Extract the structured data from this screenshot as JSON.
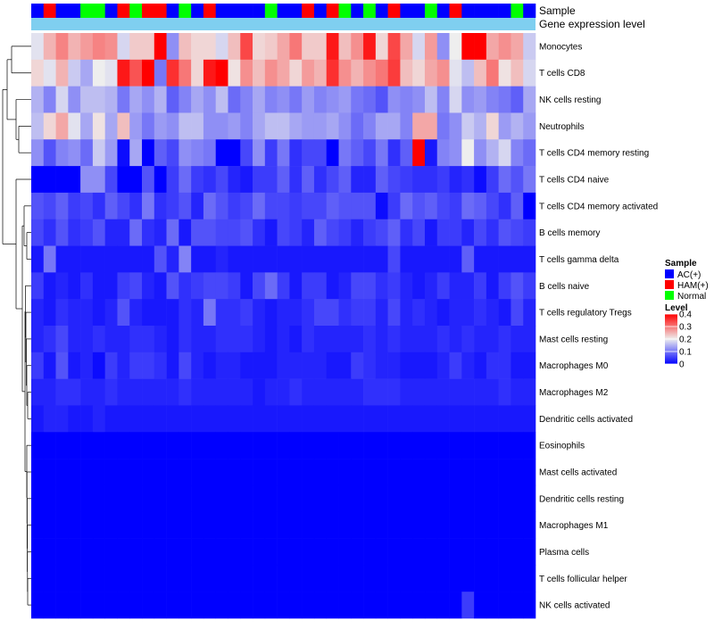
{
  "chart_data": {
    "type": "heatmap",
    "title": "",
    "row_labels": [
      "Monocytes",
      "T cells CD8",
      "NK cells resting",
      "Neutrophils",
      "T cells CD4 memory resting",
      "T cells CD4 naive",
      "T cells CD4 memory activated",
      "B cells memory",
      "T cells gamma delta",
      "B cells naive",
      "T cells regulatory  Tregs",
      "Mast cells resting",
      "Macrophages M0",
      "Macrophages M2",
      "Dendritic cells activated",
      "Eosinophils",
      "Mast cells activated",
      "Dendritic cells resting",
      "Macrophages M1",
      "Plasma cells",
      "T cells follicular helper",
      "NK cells activated"
    ],
    "annotation_tracks": [
      "Sample",
      "Gene expression level"
    ],
    "sample_groups": [
      "A",
      "H",
      "A",
      "A",
      "N",
      "N",
      "A",
      "H",
      "N",
      "H",
      "H",
      "A",
      "N",
      "A",
      "H",
      "A",
      "A",
      "A",
      "A",
      "N",
      "A",
      "A",
      "H",
      "A",
      "H",
      "N",
      "A",
      "N",
      "A",
      "H",
      "A",
      "A",
      "N",
      "A",
      "H",
      "A",
      "A",
      "A",
      "A",
      "N",
      "A"
    ],
    "gene_expression_color": "#7fcff0",
    "legend_sample": {
      "title": "Sample",
      "entries": [
        {
          "key": "A",
          "label": "AC(+)",
          "color": "#0000ff"
        },
        {
          "key": "H",
          "label": "HAM(+)",
          "color": "#ff0000"
        },
        {
          "key": "N",
          "label": "Normal",
          "color": "#00ff00"
        }
      ]
    },
    "legend_level": {
      "title": "Level",
      "min": 0,
      "max": 0.4,
      "ticks": [
        0.4,
        0.3,
        0.2,
        0.1,
        0
      ],
      "tick_labels": [
        "0.4",
        "0.3",
        "0.2",
        "0.1",
        "0"
      ]
    },
    "values": [
      [
        0.19,
        0.25,
        0.29,
        0.25,
        0.27,
        0.29,
        0.28,
        0.18,
        0.23,
        0.23,
        0.4,
        0.12,
        0.24,
        0.22,
        0.22,
        0.18,
        0.24,
        0.34,
        0.22,
        0.23,
        0.26,
        0.3,
        0.23,
        0.23,
        0.38,
        0.24,
        0.28,
        0.38,
        0.22,
        0.34,
        0.26,
        0.18,
        0.27,
        0.12,
        0.2,
        0.4,
        0.4,
        0.26,
        0.28,
        0.26,
        0.17
      ],
      [
        0.22,
        0.19,
        0.25,
        0.17,
        0.14,
        0.2,
        0.19,
        0.38,
        0.33,
        0.4,
        0.1,
        0.36,
        0.3,
        0.22,
        0.38,
        0.4,
        0.21,
        0.28,
        0.24,
        0.28,
        0.26,
        0.22,
        0.27,
        0.25,
        0.36,
        0.28,
        0.25,
        0.28,
        0.3,
        0.35,
        0.24,
        0.22,
        0.26,
        0.28,
        0.19,
        0.16,
        0.24,
        0.3,
        0.21,
        0.24,
        0.18
      ],
      [
        0.15,
        0.11,
        0.18,
        0.12,
        0.16,
        0.16,
        0.15,
        0.1,
        0.14,
        0.12,
        0.15,
        0.08,
        0.11,
        0.14,
        0.12,
        0.16,
        0.09,
        0.11,
        0.14,
        0.11,
        0.12,
        0.1,
        0.13,
        0.11,
        0.12,
        0.13,
        0.1,
        0.09,
        0.07,
        0.12,
        0.11,
        0.12,
        0.16,
        0.11,
        0.18,
        0.12,
        0.13,
        0.11,
        0.1,
        0.08,
        0.14
      ],
      [
        0.16,
        0.22,
        0.26,
        0.19,
        0.14,
        0.21,
        0.14,
        0.24,
        0.13,
        0.1,
        0.13,
        0.12,
        0.16,
        0.16,
        0.12,
        0.12,
        0.13,
        0.11,
        0.14,
        0.16,
        0.16,
        0.14,
        0.13,
        0.13,
        0.14,
        0.12,
        0.09,
        0.11,
        0.14,
        0.14,
        0.11,
        0.26,
        0.26,
        0.1,
        0.12,
        0.17,
        0.15,
        0.22,
        0.13,
        0.15,
        0.13
      ],
      [
        0.12,
        0.07,
        0.11,
        0.12,
        0.09,
        0.17,
        0.13,
        0.01,
        0.14,
        0.0,
        0.08,
        0.06,
        0.12,
        0.11,
        0.1,
        0.0,
        0.0,
        0.06,
        0.12,
        0.05,
        0.1,
        0.04,
        0.06,
        0.06,
        0.0,
        0.1,
        0.08,
        0.06,
        0.1,
        0.04,
        0.08,
        0.4,
        0.02,
        0.11,
        0.12,
        0.2,
        0.12,
        0.15,
        0.18,
        0.11,
        0.09
      ],
      [
        0.0,
        0.0,
        0.0,
        0.0,
        0.12,
        0.12,
        0.06,
        0.0,
        0.0,
        0.07,
        0.0,
        0.05,
        0.09,
        0.05,
        0.04,
        0.06,
        0.03,
        0.02,
        0.05,
        0.05,
        0.08,
        0.04,
        0.08,
        0.04,
        0.06,
        0.08,
        0.03,
        0.03,
        0.08,
        0.06,
        0.05,
        0.04,
        0.04,
        0.05,
        0.03,
        0.04,
        0.01,
        0.05,
        0.09,
        0.07,
        0.1
      ],
      [
        0.07,
        0.06,
        0.08,
        0.05,
        0.06,
        0.04,
        0.08,
        0.06,
        0.04,
        0.1,
        0.04,
        0.05,
        0.07,
        0.03,
        0.09,
        0.07,
        0.05,
        0.06,
        0.09,
        0.06,
        0.06,
        0.05,
        0.06,
        0.06,
        0.08,
        0.07,
        0.07,
        0.07,
        0.01,
        0.05,
        0.09,
        0.07,
        0.08,
        0.06,
        0.05,
        0.09,
        0.08,
        0.06,
        0.04,
        0.08,
        0.0
      ],
      [
        0.06,
        0.04,
        0.07,
        0.04,
        0.05,
        0.07,
        0.03,
        0.03,
        0.09,
        0.04,
        0.03,
        0.09,
        0.02,
        0.07,
        0.07,
        0.06,
        0.06,
        0.07,
        0.04,
        0.02,
        0.06,
        0.05,
        0.03,
        0.08,
        0.06,
        0.05,
        0.03,
        0.05,
        0.06,
        0.08,
        0.04,
        0.06,
        0.02,
        0.05,
        0.05,
        0.03,
        0.06,
        0.04,
        0.07,
        0.06,
        0.05
      ],
      [
        0.02,
        0.1,
        0.02,
        0.02,
        0.02,
        0.02,
        0.02,
        0.02,
        0.02,
        0.02,
        0.07,
        0.03,
        0.11,
        0.02,
        0.02,
        0.03,
        0.02,
        0.02,
        0.02,
        0.02,
        0.02,
        0.02,
        0.02,
        0.02,
        0.02,
        0.02,
        0.02,
        0.02,
        0.02,
        0.06,
        0.02,
        0.02,
        0.02,
        0.02,
        0.02,
        0.08,
        0.02,
        0.02,
        0.02,
        0.02,
        0.02
      ],
      [
        0.05,
        0.02,
        0.03,
        0.02,
        0.04,
        0.02,
        0.02,
        0.05,
        0.06,
        0.03,
        0.02,
        0.07,
        0.04,
        0.05,
        0.06,
        0.06,
        0.05,
        0.02,
        0.06,
        0.09,
        0.05,
        0.02,
        0.05,
        0.05,
        0.02,
        0.03,
        0.06,
        0.06,
        0.04,
        0.05,
        0.03,
        0.02,
        0.03,
        0.05,
        0.03,
        0.03,
        0.05,
        0.02,
        0.05,
        0.07,
        0.05
      ],
      [
        0.03,
        0.02,
        0.04,
        0.03,
        0.03,
        0.02,
        0.03,
        0.07,
        0.03,
        0.02,
        0.02,
        0.02,
        0.04,
        0.03,
        0.1,
        0.04,
        0.04,
        0.05,
        0.03,
        0.02,
        0.03,
        0.03,
        0.04,
        0.06,
        0.06,
        0.04,
        0.05,
        0.05,
        0.03,
        0.06,
        0.03,
        0.04,
        0.03,
        0.02,
        0.03,
        0.03,
        0.04,
        0.03,
        0.02,
        0.06,
        0.03
      ],
      [
        0.03,
        0.04,
        0.06,
        0.03,
        0.03,
        0.04,
        0.03,
        0.03,
        0.04,
        0.04,
        0.03,
        0.02,
        0.04,
        0.03,
        0.03,
        0.04,
        0.04,
        0.04,
        0.03,
        0.02,
        0.03,
        0.02,
        0.04,
        0.03,
        0.03,
        0.03,
        0.03,
        0.04,
        0.03,
        0.04,
        0.03,
        0.03,
        0.03,
        0.04,
        0.03,
        0.04,
        0.03,
        0.03,
        0.04,
        0.03,
        0.03
      ],
      [
        0.05,
        0.02,
        0.07,
        0.02,
        0.03,
        0.01,
        0.05,
        0.03,
        0.05,
        0.05,
        0.04,
        0.02,
        0.06,
        0.03,
        0.02,
        0.03,
        0.03,
        0.02,
        0.02,
        0.02,
        0.03,
        0.03,
        0.03,
        0.03,
        0.02,
        0.02,
        0.05,
        0.04,
        0.03,
        0.03,
        0.02,
        0.02,
        0.02,
        0.03,
        0.05,
        0.03,
        0.02,
        0.04,
        0.04,
        0.02,
        0.02
      ],
      [
        0.03,
        0.03,
        0.04,
        0.04,
        0.03,
        0.03,
        0.04,
        0.03,
        0.03,
        0.03,
        0.03,
        0.03,
        0.04,
        0.03,
        0.03,
        0.03,
        0.03,
        0.03,
        0.02,
        0.03,
        0.03,
        0.04,
        0.03,
        0.03,
        0.03,
        0.03,
        0.03,
        0.04,
        0.04,
        0.04,
        0.03,
        0.03,
        0.03,
        0.03,
        0.03,
        0.03,
        0.03,
        0.03,
        0.04,
        0.03,
        0.03
      ],
      [
        0.02,
        0.03,
        0.03,
        0.02,
        0.02,
        0.03,
        0.02,
        0.02,
        0.02,
        0.02,
        0.02,
        0.02,
        0.02,
        0.02,
        0.02,
        0.02,
        0.02,
        0.02,
        0.02,
        0.02,
        0.02,
        0.02,
        0.02,
        0.02,
        0.02,
        0.02,
        0.02,
        0.02,
        0.02,
        0.02,
        0.02,
        0.02,
        0.02,
        0.02,
        0.02,
        0.02,
        0.02,
        0.02,
        0.02,
        0.02,
        0.02
      ],
      [
        0.0,
        0.0,
        0.0,
        0.0,
        0.0,
        0.0,
        0.0,
        0.0,
        0.0,
        0.0,
        0.0,
        0.0,
        0.0,
        0.0,
        0.0,
        0.0,
        0.0,
        0.0,
        0.0,
        0.0,
        0.0,
        0.0,
        0.0,
        0.0,
        0.0,
        0.0,
        0.0,
        0.0,
        0.0,
        0.0,
        0.0,
        0.0,
        0.0,
        0.0,
        0.0,
        0.0,
        0.0,
        0.0,
        0.0,
        0.0,
        0.0
      ],
      [
        0.0,
        0.0,
        0.0,
        0.0,
        0.0,
        0.0,
        0.0,
        0.0,
        0.0,
        0.0,
        0.0,
        0.0,
        0.0,
        0.0,
        0.0,
        0.0,
        0.0,
        0.0,
        0.0,
        0.0,
        0.0,
        0.0,
        0.0,
        0.0,
        0.0,
        0.0,
        0.0,
        0.0,
        0.0,
        0.0,
        0.0,
        0.0,
        0.0,
        0.0,
        0.0,
        0.0,
        0.0,
        0.0,
        0.0,
        0.0,
        0.0
      ],
      [
        0.0,
        0.0,
        0.0,
        0.0,
        0.0,
        0.0,
        0.0,
        0.0,
        0.0,
        0.0,
        0.0,
        0.0,
        0.0,
        0.0,
        0.0,
        0.0,
        0.0,
        0.0,
        0.0,
        0.0,
        0.0,
        0.0,
        0.0,
        0.0,
        0.0,
        0.0,
        0.0,
        0.0,
        0.0,
        0.0,
        0.0,
        0.0,
        0.0,
        0.0,
        0.0,
        0.0,
        0.0,
        0.0,
        0.0,
        0.0,
        0.0
      ],
      [
        0.0,
        0.0,
        0.0,
        0.0,
        0.0,
        0.0,
        0.0,
        0.0,
        0.0,
        0.0,
        0.0,
        0.0,
        0.0,
        0.0,
        0.0,
        0.0,
        0.0,
        0.0,
        0.0,
        0.0,
        0.0,
        0.0,
        0.0,
        0.0,
        0.0,
        0.0,
        0.0,
        0.0,
        0.0,
        0.0,
        0.0,
        0.0,
        0.0,
        0.0,
        0.0,
        0.0,
        0.0,
        0.0,
        0.0,
        0.0,
        0.0
      ],
      [
        0.0,
        0.0,
        0.0,
        0.0,
        0.0,
        0.0,
        0.0,
        0.0,
        0.0,
        0.0,
        0.0,
        0.0,
        0.0,
        0.0,
        0.0,
        0.0,
        0.0,
        0.0,
        0.0,
        0.0,
        0.0,
        0.0,
        0.0,
        0.0,
        0.0,
        0.0,
        0.0,
        0.0,
        0.0,
        0.0,
        0.0,
        0.0,
        0.0,
        0.0,
        0.0,
        0.0,
        0.0,
        0.0,
        0.0,
        0.0,
        0.0
      ],
      [
        0.0,
        0.0,
        0.0,
        0.0,
        0.0,
        0.0,
        0.0,
        0.0,
        0.0,
        0.0,
        0.0,
        0.0,
        0.0,
        0.0,
        0.0,
        0.0,
        0.0,
        0.0,
        0.0,
        0.0,
        0.0,
        0.0,
        0.0,
        0.0,
        0.0,
        0.0,
        0.0,
        0.0,
        0.0,
        0.0,
        0.0,
        0.0,
        0.0,
        0.0,
        0.0,
        0.0,
        0.0,
        0.0,
        0.0,
        0.0,
        0.0
      ],
      [
        0.0,
        0.0,
        0.0,
        0.0,
        0.0,
        0.0,
        0.0,
        0.0,
        0.0,
        0.0,
        0.0,
        0.0,
        0.0,
        0.0,
        0.0,
        0.0,
        0.0,
        0.0,
        0.0,
        0.0,
        0.0,
        0.0,
        0.0,
        0.0,
        0.0,
        0.0,
        0.0,
        0.0,
        0.0,
        0.0,
        0.0,
        0.0,
        0.0,
        0.0,
        0.0,
        0.05,
        0.0,
        0.0,
        0.0,
        0.0,
        0.0
      ]
    ]
  }
}
